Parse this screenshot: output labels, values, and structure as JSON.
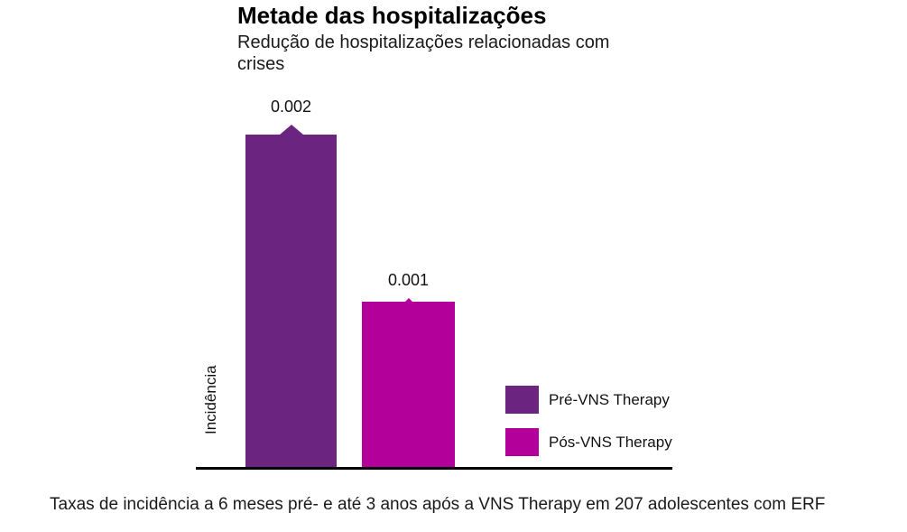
{
  "header": {
    "title": "Metade das hospitalizações",
    "subtitle": "Redução de hospitalizações relacionadas com crises"
  },
  "chart_data": {
    "type": "bar",
    "title": "Metade das hospitalizações",
    "subtitle": "Redução de hospitalizações relacionadas com crises",
    "categories": [
      "Pré-VNS Therapy",
      "Pós-VNS Therapy"
    ],
    "values": [
      0.002,
      0.001
    ],
    "value_labels": [
      "0.002",
      "0.001"
    ],
    "series_colors": [
      "#6B2580",
      "#B4009B"
    ],
    "xlabel": "",
    "ylabel": "Incidência",
    "ylim": [
      0,
      0.0021
    ],
    "grid": false,
    "axis_line_color": "#000000",
    "legend_position": "right-bottom",
    "legend": [
      {
        "label": "Pré-VNS Therapy",
        "color": "#6B2580"
      },
      {
        "label": "Pós-VNS Therapy",
        "color": "#B4009B"
      }
    ],
    "footer": "Taxas de incidência a 6 meses pré- e até 3 anos após a VNS Therapy em 207 adolescentes com ERF"
  },
  "footer": {
    "caption": "Taxas de incidência a 6 meses pré- e até 3 anos após a VNS Therapy em 207 adolescentes com ERF"
  }
}
